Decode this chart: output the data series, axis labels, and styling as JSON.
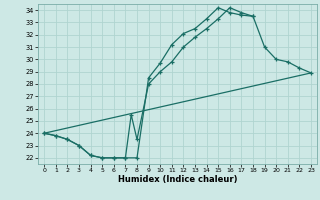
{
  "xlabel": "Humidex (Indice chaleur)",
  "xlim": [
    -0.5,
    23.5
  ],
  "ylim": [
    21.5,
    34.5
  ],
  "xticks": [
    0,
    1,
    2,
    3,
    4,
    5,
    6,
    7,
    8,
    9,
    10,
    11,
    12,
    13,
    14,
    15,
    16,
    17,
    18,
    19,
    20,
    21,
    22,
    23
  ],
  "yticks": [
    22,
    23,
    24,
    25,
    26,
    27,
    28,
    29,
    30,
    31,
    32,
    33,
    34
  ],
  "bg_color": "#cde8e5",
  "grid_color": "#b0d4d0",
  "line_color": "#1a6e65",
  "c1x": [
    0,
    1,
    2,
    3,
    4,
    5,
    6,
    7,
    8,
    9,
    10,
    11,
    12,
    13,
    14,
    15,
    16,
    17,
    18
  ],
  "c1y": [
    24.0,
    23.8,
    23.5,
    23.0,
    22.2,
    22.0,
    22.0,
    22.0,
    22.0,
    28.5,
    29.7,
    31.2,
    32.1,
    32.5,
    33.3,
    34.2,
    33.8,
    33.6,
    33.5
  ],
  "c2x": [
    0,
    1,
    2,
    3,
    4,
    5,
    6,
    7,
    7.5,
    8,
    9,
    10,
    11,
    12,
    13,
    14,
    15,
    16,
    17,
    18,
    19,
    20,
    21,
    22,
    23
  ],
  "c2y": [
    24.0,
    23.8,
    23.5,
    23.0,
    22.2,
    22.0,
    22.0,
    22.0,
    25.5,
    23.5,
    28.0,
    29.0,
    29.8,
    31.0,
    31.8,
    32.5,
    33.3,
    34.2,
    33.8,
    33.5,
    31.0,
    30.0,
    29.8,
    29.3,
    28.9
  ],
  "c3x": [
    0,
    23
  ],
  "c3y": [
    24.0,
    28.9
  ]
}
